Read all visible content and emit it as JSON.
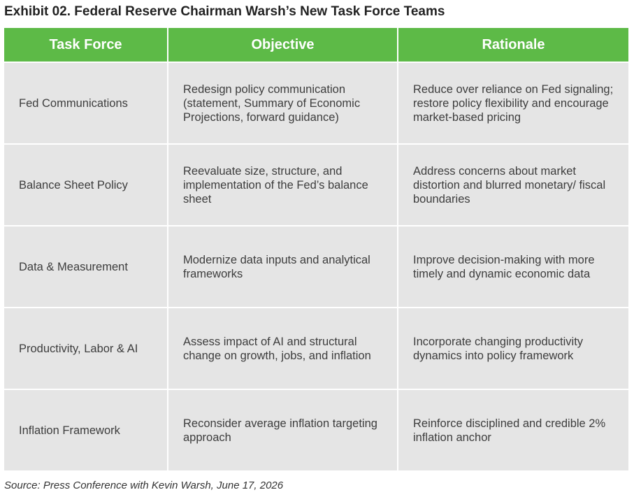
{
  "exhibit": {
    "title": "Exhibit 02. Federal Reserve Chairman Warsh’s New Task Force Teams",
    "source": "Source: Press Conference with Kevin Warsh, June 17, 2026"
  },
  "table": {
    "header_color": "#5dba47",
    "row_color": "#e5e5e5",
    "headers": [
      "Task Force",
      "Objective",
      "Rationale"
    ],
    "rows": [
      {
        "task_force": "Fed Communications",
        "objective": "Redesign policy communication (statement, Summary of Economic Projections, forward guidance)",
        "rationale": "Reduce over reliance on Fed signaling; restore policy flexibility and encourage market-based pricing"
      },
      {
        "task_force": "Balance Sheet Policy",
        "objective": "Reevaluate size, structure, and implementation of the Fed’s balance sheet",
        "rationale": "Address concerns about market distortion and blurred monetary/ fiscal boundaries"
      },
      {
        "task_force": "Data & Measurement",
        "objective": "Modernize data inputs and analytical frameworks",
        "rationale": "Improve decision-making with more timely and dynamic economic data"
      },
      {
        "task_force": "Productivity, Labor & AI",
        "objective": "Assess impact of AI and structural change on growth, jobs, and inflation",
        "rationale": "Incorporate changing productivity dynamics into policy framework"
      },
      {
        "task_force": "Inflation Framework",
        "objective": "Reconsider average inflation targeting approach",
        "rationale": "Reinforce disciplined and credible 2% inflation anchor"
      }
    ]
  }
}
